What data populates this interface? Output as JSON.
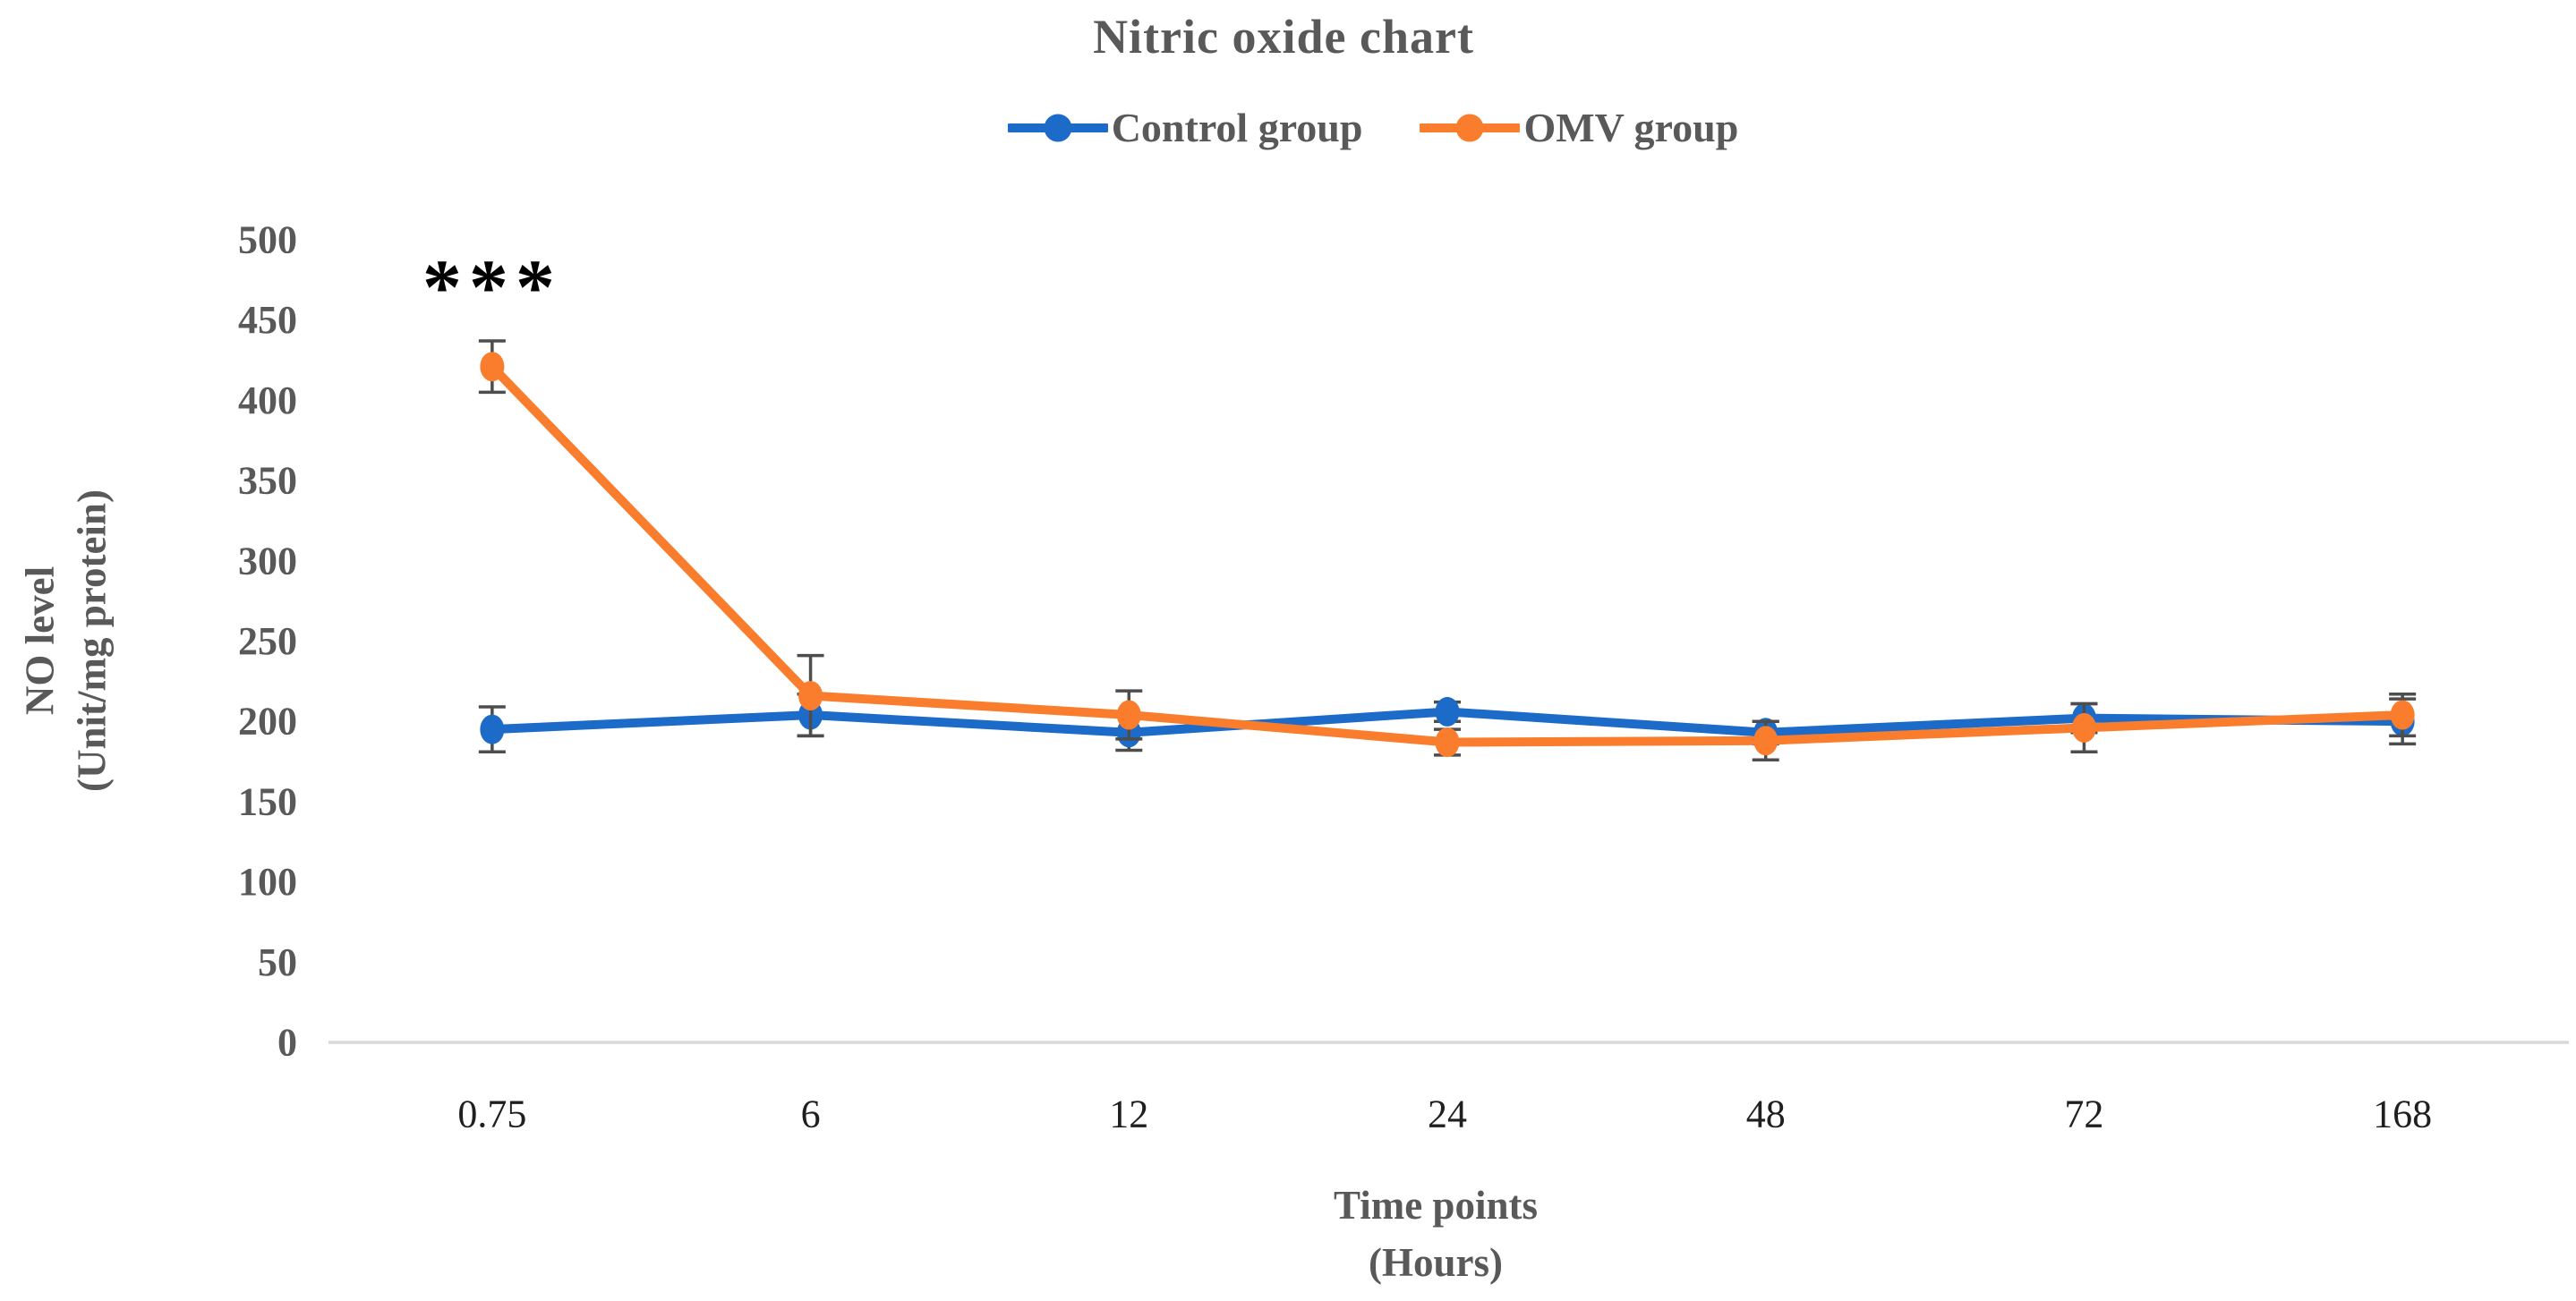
{
  "title": "Nitric oxide chart",
  "colors": {
    "control_blue": "#1D6BC9",
    "omv_orange": "#F97D2C",
    "text_gray": "#595959",
    "x_tick_text": "#1F1F1F",
    "axis_line": "#D9D9D9",
    "error_bar": "#4D4D4D",
    "annotation_black": "#000000"
  },
  "chart_data": {
    "type": "line",
    "title": "Nitric oxide chart",
    "categories": [
      "0.75",
      "6",
      "12",
      "24",
      "48",
      "72",
      "168"
    ],
    "series": [
      {
        "name": "Control group",
        "color": "#1D6BC9",
        "values": [
          195,
          204,
          193,
          206,
          193,
          202,
          200
        ],
        "errors": [
          14,
          13,
          11,
          6,
          7,
          9,
          14
        ]
      },
      {
        "name": "OMV group",
        "color": "#F97D2C",
        "values": [
          421,
          216,
          204,
          187,
          188,
          196,
          204
        ],
        "errors": [
          16,
          25,
          15,
          8,
          12,
          15,
          13
        ]
      }
    ],
    "xlabel": "Time points (Hours)",
    "xlabel_line1": "Time points",
    "xlabel_line2": "(Hours)",
    "ylabel": "NO level (Unit/mg protein)",
    "ylabel_line1": "NO level",
    "ylabel_line2": "(Unit/mg protein)",
    "ylim": [
      0,
      500
    ],
    "ytick_step": 50,
    "ytick_labels": [
      "0",
      "50",
      "100",
      "150",
      "200",
      "250",
      "300",
      "350",
      "400",
      "450",
      "500"
    ],
    "grid": false,
    "legend_position": "top",
    "error_bars": true,
    "annotation": {
      "text": "***",
      "series": "OMV group",
      "category": "0.75",
      "category_index": 0,
      "value": 470
    }
  }
}
